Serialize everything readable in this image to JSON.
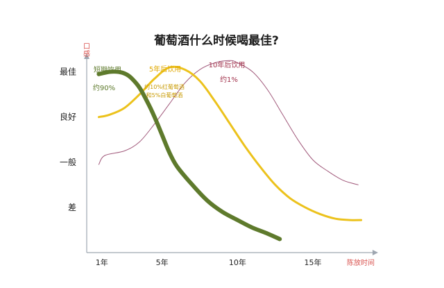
{
  "title": "葡萄酒什么时候喝最佳?",
  "chart_data": {
    "type": "line",
    "title": "葡萄酒什么时候喝最佳?",
    "ylabel": "口感",
    "xlabel": "陈放时间",
    "xlim": [
      0,
      19
    ],
    "ylim": [
      0,
      4.3
    ],
    "y_ticks": [
      {
        "label": "最佳",
        "value": 4
      },
      {
        "label": "良好",
        "value": 3
      },
      {
        "label": "一般",
        "value": 2
      },
      {
        "label": "差",
        "value": 1
      }
    ],
    "x_ticks": [
      {
        "label": "1年",
        "value": 1
      },
      {
        "label": "5年",
        "value": 5
      },
      {
        "label": "10年",
        "value": 10
      },
      {
        "label": "15年",
        "value": 15
      }
    ],
    "grid": false,
    "legend": "none",
    "series": [
      {
        "name": "短期饮用",
        "color": "#5e7a2c",
        "width": 6,
        "x": [
          0.8,
          1.5,
          2.1,
          2.6,
          3.0,
          3.5,
          4.0,
          4.5,
          5.0,
          5.5,
          6.0,
          7.0,
          8.0,
          9.0,
          10.0,
          11.0,
          12.0,
          12.8
        ],
        "y": [
          3.95,
          4.0,
          4.0,
          3.95,
          3.85,
          3.65,
          3.35,
          3.0,
          2.6,
          2.2,
          1.9,
          1.5,
          1.15,
          0.9,
          0.72,
          0.55,
          0.42,
          0.3
        ]
      },
      {
        "name": "5年后饮用",
        "color": "#ecc21c",
        "width": 3,
        "x": [
          0.8,
          1.5,
          2.5,
          3.5,
          4.5,
          5.5,
          6.5,
          7.5,
          8.5,
          9.5,
          10.5,
          11.5,
          12.5,
          13.5,
          14.5,
          15.5,
          16.5,
          17.5,
          18.2
        ],
        "y": [
          3.0,
          3.05,
          3.2,
          3.5,
          3.85,
          4.1,
          4.05,
          3.8,
          3.35,
          2.85,
          2.35,
          1.9,
          1.5,
          1.2,
          1.0,
          0.85,
          0.75,
          0.72,
          0.72
        ]
      },
      {
        "name": "10年后饮用",
        "color": "#a0587a",
        "width": 1,
        "x": [
          0.8,
          1.2,
          2.5,
          3.5,
          4.5,
          5.5,
          6.5,
          7.5,
          8.5,
          9.5,
          10.0,
          11.0,
          12.0,
          13.0,
          14.0,
          15.0,
          16.0,
          17.0,
          18.0
        ],
        "y": [
          1.95,
          2.15,
          2.25,
          2.45,
          2.85,
          3.3,
          3.75,
          4.05,
          4.2,
          4.25,
          4.2,
          4.0,
          3.6,
          3.05,
          2.5,
          2.05,
          1.8,
          1.6,
          1.5
        ]
      }
    ],
    "annotations": [
      {
        "id": "short-label",
        "text": "短期饮用",
        "color": "#5e7a2c",
        "size": "normal"
      },
      {
        "id": "short-pct",
        "text": "约90%",
        "color": "#5e7a2c",
        "size": "normal"
      },
      {
        "id": "five-label",
        "text": "5年后饮用",
        "color": "#e0a800",
        "size": "normal"
      },
      {
        "id": "five-pct-1",
        "text": "约10%红葡萄酒",
        "color": "#c89a00",
        "size": "small"
      },
      {
        "id": "five-pct-2",
        "text": "和5%白葡萄酒",
        "color": "#c89a00",
        "size": "small"
      },
      {
        "id": "ten-label",
        "text": "10年后饮用",
        "color": "#a0304a",
        "size": "normal"
      },
      {
        "id": "ten-pct",
        "text": "约1%",
        "color": "#a0304a",
        "size": "normal"
      }
    ]
  }
}
